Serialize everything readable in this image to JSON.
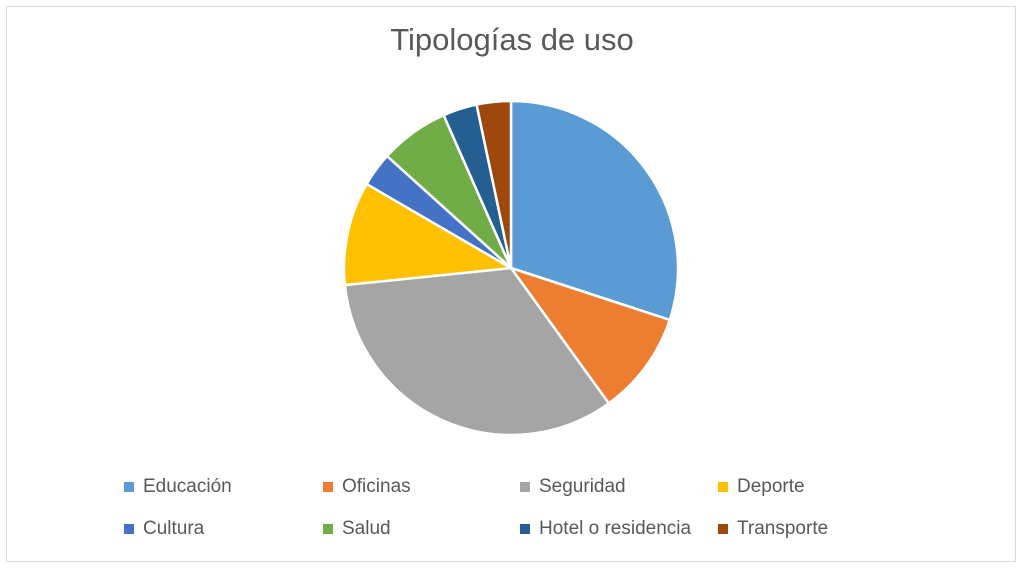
{
  "chart_data": {
    "type": "pie",
    "title": "Tipologías de uso",
    "categories": [
      "Educación",
      "Oficinas",
      "Seguridad",
      "Deporte",
      "Cultura",
      "Salud",
      "Hotel o residencia",
      "Transporte"
    ],
    "values": [
      30.0,
      10.0,
      33.3,
      10.0,
      3.3,
      6.7,
      3.3,
      3.3
    ],
    "colors": [
      "#5b9bd5",
      "#ed7d31",
      "#a5a5a5",
      "#ffc000",
      "#4472c4",
      "#70ad47",
      "#255e91",
      "#9e480e"
    ],
    "legend_position": "bottom"
  }
}
